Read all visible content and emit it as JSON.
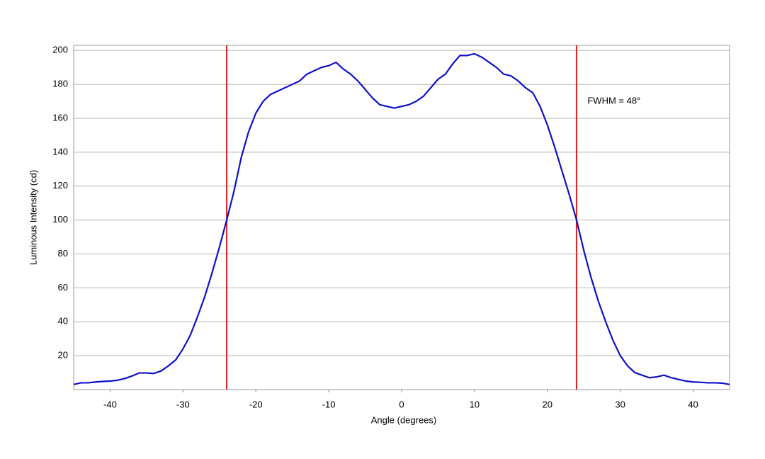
{
  "chart_data": {
    "type": "line",
    "xlabel": "Angle (degrees)",
    "ylabel": "Luminous Intensity (cd)",
    "annotation": {
      "text": "FWHM = 48°",
      "x": 25.5,
      "y": 170
    },
    "vlines": [
      -24,
      24
    ],
    "vline_color": "#e02020",
    "x": [
      -45,
      -44,
      -43,
      -42,
      -41,
      -40,
      -39,
      -38,
      -37,
      -36,
      -35,
      -34,
      -33,
      -32,
      -31,
      -30,
      -29,
      -28,
      -27,
      -26,
      -25,
      -24,
      -23,
      -22,
      -21,
      -20,
      -19,
      -18,
      -17,
      -16,
      -15,
      -14,
      -13,
      -12,
      -11,
      -10,
      -9,
      -8,
      -7,
      -6,
      -5,
      -4,
      -3,
      -2,
      -1,
      0,
      1,
      2,
      3,
      4,
      5,
      6,
      7,
      8,
      9,
      10,
      11,
      12,
      13,
      14,
      15,
      16,
      17,
      18,
      19,
      20,
      21,
      22,
      23,
      24,
      25,
      26,
      27,
      28,
      29,
      30,
      31,
      32,
      33,
      34,
      35,
      36,
      37,
      38,
      39,
      40,
      41,
      42,
      43,
      44,
      45
    ],
    "series": [
      {
        "name": "Luminous Intensity",
        "color": "#1010c8",
        "values": [
          3,
          4,
          4,
          4.5,
          4.8,
          5,
          5.5,
          6.5,
          8,
          9.8,
          9.8,
          9.5,
          11,
          14,
          17.5,
          24,
          32,
          43,
          55,
          69,
          84,
          100,
          117,
          137,
          152,
          163,
          170,
          174,
          176,
          178,
          180,
          182,
          186,
          188,
          190,
          191,
          193,
          189,
          186,
          182,
          177,
          172,
          168,
          167,
          166,
          167,
          168,
          170,
          173,
          178,
          183,
          186,
          192,
          197,
          197,
          198,
          196,
          193,
          190,
          186,
          185,
          182,
          178,
          175,
          167,
          156,
          143,
          129,
          115,
          100,
          82,
          66,
          52,
          40,
          29,
          20,
          14,
          10,
          8.5,
          7,
          7.5,
          8.5,
          7,
          6,
          5,
          4.5,
          4.3,
          4,
          4,
          3.8,
          3
        ]
      }
    ],
    "xlim": [
      -45,
      45
    ],
    "ylim": [
      0,
      203
    ],
    "xticks": [
      -40,
      -30,
      -20,
      -10,
      0,
      10,
      20,
      30,
      40
    ],
    "yticks": [
      20,
      40,
      60,
      80,
      100,
      120,
      140,
      160,
      180,
      200
    ],
    "grid": true
  }
}
